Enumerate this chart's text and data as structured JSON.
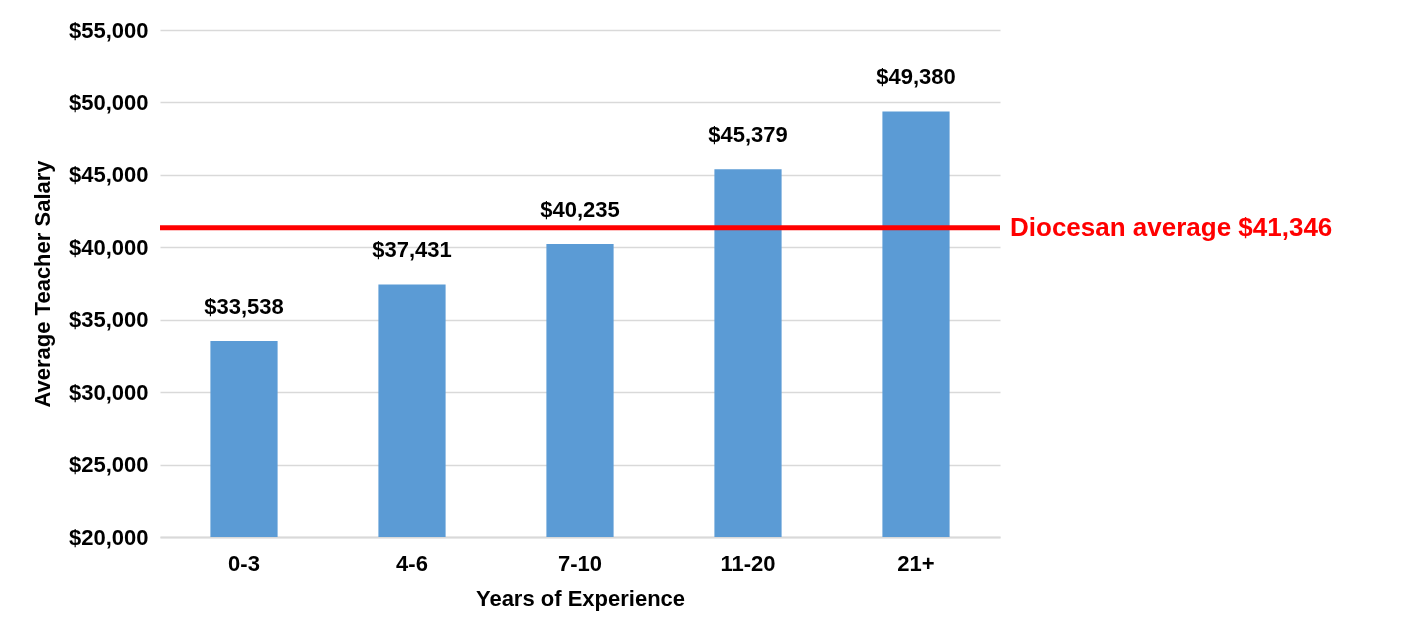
{
  "chart_data": {
    "type": "bar",
    "xlabel": "Years of Experience",
    "ylabel": "Average Teacher Salary",
    "categories": [
      "0-3",
      "4-6",
      "7-10",
      "11-20",
      "21+"
    ],
    "values": [
      33538,
      37431,
      40235,
      45379,
      49380
    ],
    "color": "#5b9bd5",
    "value_labels": [
      "$33,538",
      "$37,431",
      "$40,235",
      "$45,379",
      "$49,380"
    ],
    "ylim": [
      20000,
      55000
    ],
    "yticks": [
      {
        "value": 20000,
        "label": "$20,000"
      },
      {
        "value": 25000,
        "label": "$25,000"
      },
      {
        "value": 30000,
        "label": "$30,000"
      },
      {
        "value": 35000,
        "label": "$35,000"
      },
      {
        "value": 40000,
        "label": "$40,000"
      },
      {
        "value": 45000,
        "label": "$45,000"
      },
      {
        "value": 50000,
        "label": "$50,000"
      },
      {
        "value": 55000,
        "label": "$55,000"
      }
    ],
    "grid": "y",
    "ref_lines": [
      {
        "axis": "y",
        "value": 41346,
        "label": "Diocesan average $41,346",
        "color": "#ff0000"
      }
    ]
  }
}
